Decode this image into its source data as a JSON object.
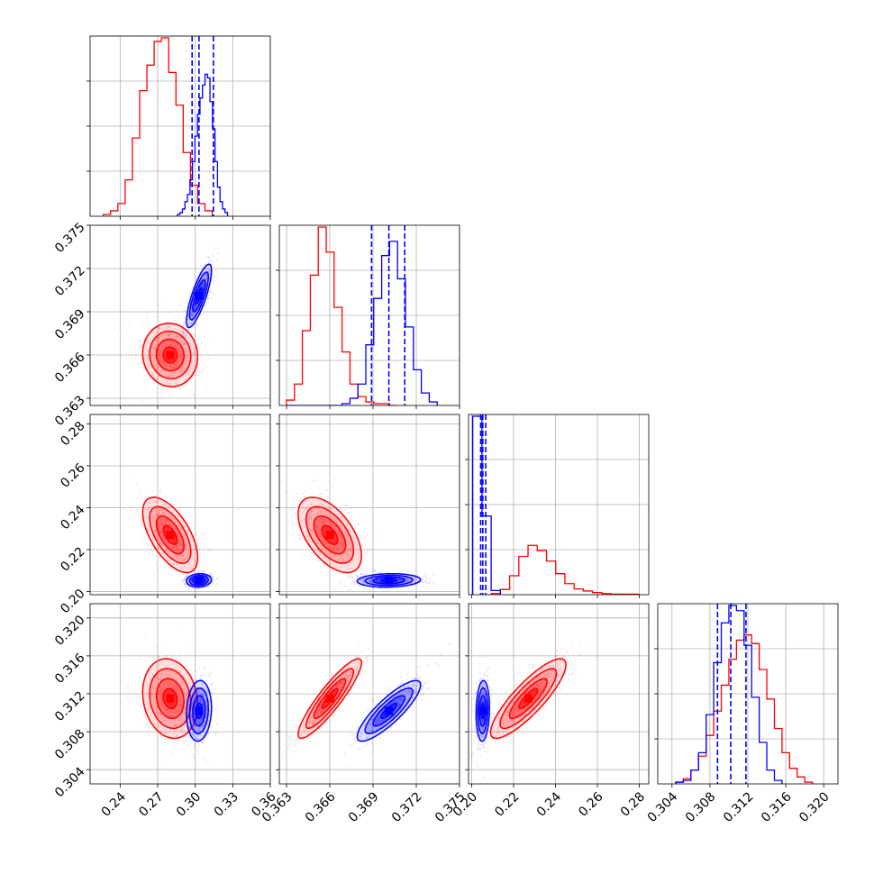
{
  "chart_data": {
    "type": "corner",
    "title": "",
    "parameters": 4,
    "grid": true,
    "series": [
      {
        "color": "#ff0000",
        "means": [
          0.28,
          0.366,
          0.227,
          0.3115
        ],
        "sds": [
          0.011,
          0.0011,
          0.009,
          0.0021
        ],
        "correlations": [
          [
            1,
            -0.05,
            -0.6,
            -0.15
          ],
          [
            -0.05,
            1,
            -0.55,
            0.9
          ],
          [
            -0.6,
            -0.55,
            1,
            0.85
          ],
          [
            -0.15,
            0.9,
            0.85,
            1
          ]
        ],
        "histograms": [
          {
            "edges": [
              0.2266,
              0.2324,
              0.2382,
              0.244,
              0.2498,
              0.2556,
              0.2614,
              0.2672,
              0.273,
              0.2788,
              0.2846,
              0.2904,
              0.2962,
              0.302,
              0.3078,
              0.3136
            ],
            "counts": [
              1,
              3,
              7,
              20,
              43,
              69,
              83,
              96,
              98,
              79,
              61,
              35,
              17,
              7,
              3
            ]
          },
          {
            "edges": [
              0.363,
              0.36355,
              0.3641,
              0.36465,
              0.3652,
              0.36575,
              0.3663,
              0.36685,
              0.3674,
              0.36795,
              0.3685,
              0.36905,
              0.3696,
              0.37015,
              0.3707
            ],
            "counts": [
              3,
              12,
              42,
              73,
              100,
              86,
              55,
              30,
              12,
              5,
              2,
              1,
              1,
              0
            ]
          },
          {
            "edges": [
              0.2093,
              0.2137,
              0.2181,
              0.2225,
              0.2269,
              0.2313,
              0.2357,
              0.2401,
              0.2445,
              0.2489,
              0.2533,
              0.2577,
              0.2621,
              0.2665,
              0.2709,
              0.2753,
              0.2797
            ],
            "counts": [
              2,
              10,
              36,
              73,
              94,
              84,
              64,
              40,
              21,
              11,
              7,
              4,
              2,
              1,
              1,
              1
            ]
          },
          {
            "edges": [
              0.3044,
              0.3052,
              0.306,
              0.3068,
              0.3076,
              0.3084,
              0.3092,
              0.31,
              0.3108,
              0.3116,
              0.3124,
              0.3132,
              0.314,
              0.3148,
              0.3156,
              0.3164,
              0.3172,
              0.318,
              0.3188
            ],
            "counts": [
              1,
              3,
              8,
              16,
              28,
              42,
              57,
              72,
              83,
              86,
              81,
              66,
              49,
              32,
              18,
              9,
              4,
              1
            ]
          }
        ]
      },
      {
        "color": "#0000ff",
        "means": [
          0.303,
          0.3701,
          0.2053,
          0.3102
        ],
        "sds": [
          0.005,
          0.0011,
          0.0016,
          0.0016
        ],
        "correlations": [
          [
            1,
            0.8,
            0.1,
            0.1
          ],
          [
            0.8,
            1,
            0.1,
            0.85
          ],
          [
            0.1,
            0.1,
            1,
            0.1
          ],
          [
            0.1,
            0.85,
            0.1,
            1
          ]
        ],
        "quantiles": [
          [
            0.2975,
            0.303,
            0.3145
          ],
          [
            0.3689,
            0.3701,
            0.3712
          ],
          [
            0.2043,
            0.2053,
            0.2067
          ],
          [
            0.3088,
            0.3102,
            0.3118
          ]
        ],
        "histograms": [
          {
            "edges": [
              0.2858,
              0.2878,
              0.2898,
              0.2918,
              0.2938,
              0.2958,
              0.2978,
              0.2998,
              0.3018,
              0.3038,
              0.3058,
              0.3078,
              0.3098,
              0.3118,
              0.3138,
              0.3158,
              0.3178,
              0.3198,
              0.3218,
              0.3238,
              0.3258
            ],
            "counts": [
              1,
              2,
              4,
              8,
              12,
              20,
              30,
              44,
              56,
              65,
              72,
              78,
              76,
              63,
              48,
              30,
              16,
              8,
              4,
              2
            ]
          },
          {
            "edges": [
              0.363,
              0.36355,
              0.3641,
              0.36465,
              0.3652,
              0.36575,
              0.3663,
              0.36685,
              0.3674,
              0.36795,
              0.3685,
              0.36905,
              0.3696,
              0.37015,
              0.3707,
              0.37125,
              0.3718,
              0.37235,
              0.3729,
              0.37345
            ],
            "counts": [
              0,
              0,
              0,
              0,
              0,
              0,
              0,
              1,
              4,
              12,
              34,
              60,
              84,
              92,
              71,
              44,
              20,
              7,
              2
            ]
          },
          {
            "edges": [
              0.2005,
              0.2049,
              0.2093,
              0.2137
            ],
            "counts": [
              340,
              150,
              8
            ]
          },
          {
            "edges": [
              0.3044,
              0.3052,
              0.306,
              0.3068,
              0.3076,
              0.3084,
              0.3092,
              0.31,
              0.3108,
              0.3116,
              0.3124,
              0.3132,
              0.314,
              0.3148,
              0.3156
            ],
            "counts": [
              1,
              2,
              8,
              18,
              40,
              70,
              93,
              103,
              100,
              80,
              50,
              24,
              8,
              2
            ]
          }
        ]
      }
    ],
    "axes": [
      {
        "range": [
          0.216,
          0.36
        ],
        "ticks": [
          0.24,
          0.27,
          0.3,
          0.33,
          0.36
        ],
        "tick_labels": [
          "0.24",
          "0.27",
          "0.30",
          "0.33",
          "0.36"
        ]
      },
      {
        "range": [
          0.3625,
          0.375
        ],
        "ticks": [
          0.363,
          0.366,
          0.369,
          0.372,
          0.375
        ],
        "tick_labels": [
          "0.363",
          "0.366",
          "0.369",
          "0.372",
          "0.375"
        ]
      },
      {
        "range": [
          0.1985,
          0.2845
        ],
        "ticks": [
          0.2,
          0.22,
          0.24,
          0.26,
          0.28
        ],
        "tick_labels": [
          "0.20",
          "0.22",
          "0.24",
          "0.26",
          "0.28"
        ]
      },
      {
        "range": [
          0.3025,
          0.3215
        ],
        "ticks": [
          0.304,
          0.308,
          0.312,
          0.316,
          0.32
        ],
        "tick_labels": [
          "0.304",
          "0.308",
          "0.312",
          "0.316",
          "0.320"
        ]
      }
    ]
  }
}
